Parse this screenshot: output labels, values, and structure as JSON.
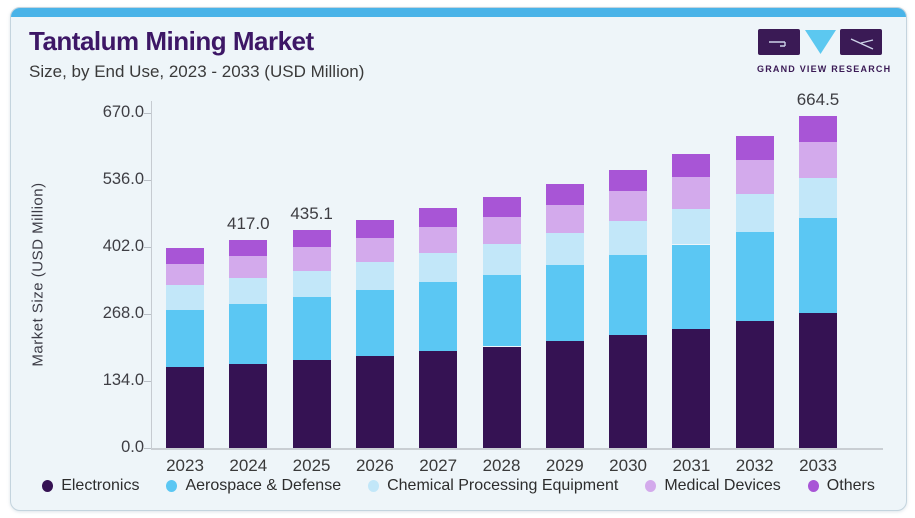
{
  "header": {
    "title": "Tantalum Mining Market",
    "subtitle": "Size, by End Use, 2023 - 2033 (USD Million)"
  },
  "logo": {
    "text": "GRAND VIEW RESEARCH"
  },
  "colors": {
    "accent_bar": "#49b3e8",
    "title": "#3d1766",
    "logo_purple": "#3a1a55",
    "logo_cyan": "#5cc8f0",
    "card_background": "#eef5f9",
    "axis_line": "#c6cbd1"
  },
  "chart_data": {
    "type": "bar",
    "stacked": true,
    "title": "Tantalum Mining Market Size, by End Use, 2023 - 2033 (USD Million)",
    "xlabel": "",
    "ylabel": "Market Size (USD Million)",
    "ylim": [
      0,
      670
    ],
    "ytick_labels": [
      "0.0",
      "134.0",
      "268.0",
      "402.0",
      "536.0",
      "670.0"
    ],
    "grid": false,
    "legend_position": "bottom",
    "categories": [
      "2023",
      "2024",
      "2025",
      "2026",
      "2027",
      "2028",
      "2029",
      "2030",
      "2031",
      "2032",
      "2033"
    ],
    "series": [
      {
        "name": "Electronics",
        "color": "#351253",
        "values": [
          161.9,
          168.9,
          176.2,
          184.9,
          194.4,
          203.0,
          213.8,
          225.5,
          238.2,
          253.1,
          269.1
        ]
      },
      {
        "name": "Aerospace & Defense",
        "color": "#5bc7f3",
        "values": [
          114.7,
          119.7,
          124.9,
          131.0,
          137.7,
          143.9,
          151.5,
          159.8,
          168.8,
          179.3,
          190.7
        ]
      },
      {
        "name": "Chemical Processing Equipment",
        "color": "#c2e7f9",
        "values": [
          48.8,
          50.9,
          53.1,
          55.7,
          58.5,
          61.2,
          64.4,
          67.9,
          71.7,
          76.2,
          81.1
        ]
      },
      {
        "name": "Medical Devices",
        "color": "#d3aaec",
        "values": [
          43.2,
          45.0,
          47.0,
          49.3,
          51.8,
          54.1,
          57.0,
          60.1,
          63.5,
          67.5,
          71.8
        ]
      },
      {
        "name": "Others",
        "color": "#a855d6",
        "values": [
          31.1,
          32.5,
          33.9,
          35.7,
          37.5,
          39.1,
          41.2,
          43.5,
          45.9,
          48.8,
          51.8
        ]
      }
    ],
    "totals": [
      399.7,
      417.0,
      435.1,
      456.6,
      479.9,
      501.3,
      527.9,
      556.8,
      588.1,
      624.9,
      664.5
    ],
    "bar_labels": [
      "",
      "417.0",
      "435.1",
      "",
      "",
      "",
      "",
      "",
      "",
      "",
      "664.5"
    ]
  }
}
